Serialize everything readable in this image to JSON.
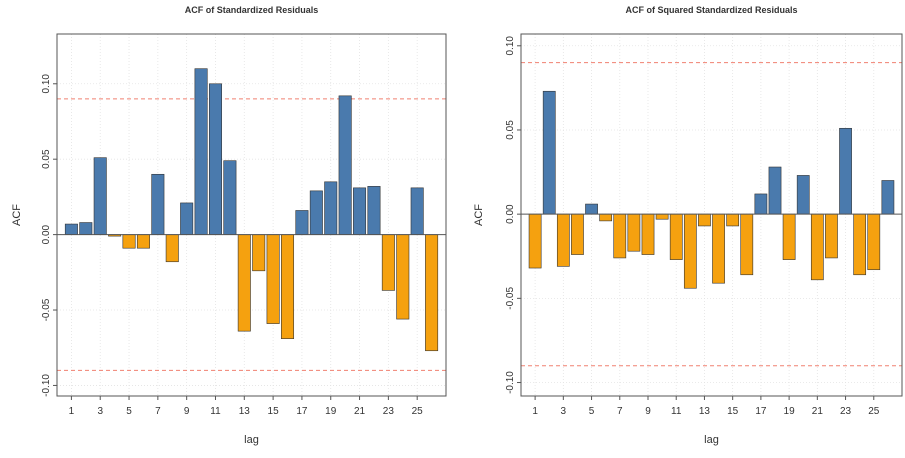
{
  "chart_data": [
    {
      "type": "bar",
      "title": "ACF of Standardized Residuals",
      "xlabel": "lag",
      "ylabel": "ACF",
      "ylim": [
        -0.107,
        0.133
      ],
      "xlim": [
        0,
        27
      ],
      "yticks": [
        0.1,
        0.05,
        0.0,
        -0.05,
        -0.1
      ],
      "ytick_labels": [
        "0.10",
        "0.05",
        "0.00",
        "-0.05",
        "-0.10"
      ],
      "xticks": [
        1,
        3,
        5,
        7,
        9,
        11,
        13,
        15,
        17,
        19,
        21,
        23,
        25
      ],
      "xtick_labels": [
        "1",
        "3",
        "5",
        "7",
        "9",
        "11",
        "13",
        "15",
        "17",
        "19",
        "21",
        "23",
        "25"
      ],
      "confidence_bounds": [
        0.09,
        -0.09
      ],
      "grid": true,
      "lags": [
        1,
        2,
        3,
        4,
        5,
        6,
        7,
        8,
        9,
        10,
        11,
        12,
        13,
        14,
        15,
        16,
        17,
        18,
        19,
        20,
        21,
        22,
        23,
        24,
        25,
        26
      ],
      "values": [
        0.007,
        0.008,
        0.051,
        -0.001,
        -0.009,
        -0.009,
        0.04,
        -0.018,
        0.021,
        0.11,
        0.1,
        0.049,
        -0.064,
        -0.024,
        -0.059,
        -0.069,
        0.016,
        0.029,
        0.035,
        0.092,
        0.031,
        0.032,
        -0.037,
        -0.056,
        0.031,
        -0.077
      ]
    },
    {
      "type": "bar",
      "title": "ACF of Squared Standardized Residuals",
      "xlabel": "lag",
      "ylabel": "ACF",
      "ylim": [
        -0.108,
        0.107
      ],
      "xlim": [
        0,
        27
      ],
      "yticks": [
        0.1,
        0.05,
        0.0,
        -0.05,
        -0.1
      ],
      "ytick_labels": [
        "0.10",
        "0.05",
        "0.00",
        "-0.05",
        "-0.10"
      ],
      "xticks": [
        1,
        3,
        5,
        7,
        9,
        11,
        13,
        15,
        17,
        19,
        21,
        23,
        25
      ],
      "xtick_labels": [
        "1",
        "3",
        "5",
        "7",
        "9",
        "11",
        "13",
        "15",
        "17",
        "19",
        "21",
        "23",
        "25"
      ],
      "confidence_bounds": [
        0.09,
        -0.09
      ],
      "grid": true,
      "lags": [
        1,
        2,
        3,
        4,
        5,
        6,
        7,
        8,
        9,
        10,
        11,
        12,
        13,
        14,
        15,
        16,
        17,
        18,
        19,
        20,
        21,
        22,
        23,
        24,
        25,
        26
      ],
      "values": [
        -0.032,
        0.073,
        -0.031,
        -0.024,
        0.006,
        -0.004,
        -0.026,
        -0.022,
        -0.024,
        -0.003,
        -0.027,
        -0.044,
        -0.007,
        -0.041,
        -0.007,
        -0.036,
        0.012,
        0.028,
        -0.027,
        0.023,
        -0.039,
        -0.026,
        0.051,
        -0.036,
        -0.033,
        0.02
      ]
    }
  ],
  "colors": {
    "positive_bar": "#4a7aad",
    "negative_bar": "#f5a10f",
    "bar_outline": "#333333",
    "confidence_line": "#f08070",
    "zero_line": "#555555",
    "grid": "#e3e3e3"
  }
}
